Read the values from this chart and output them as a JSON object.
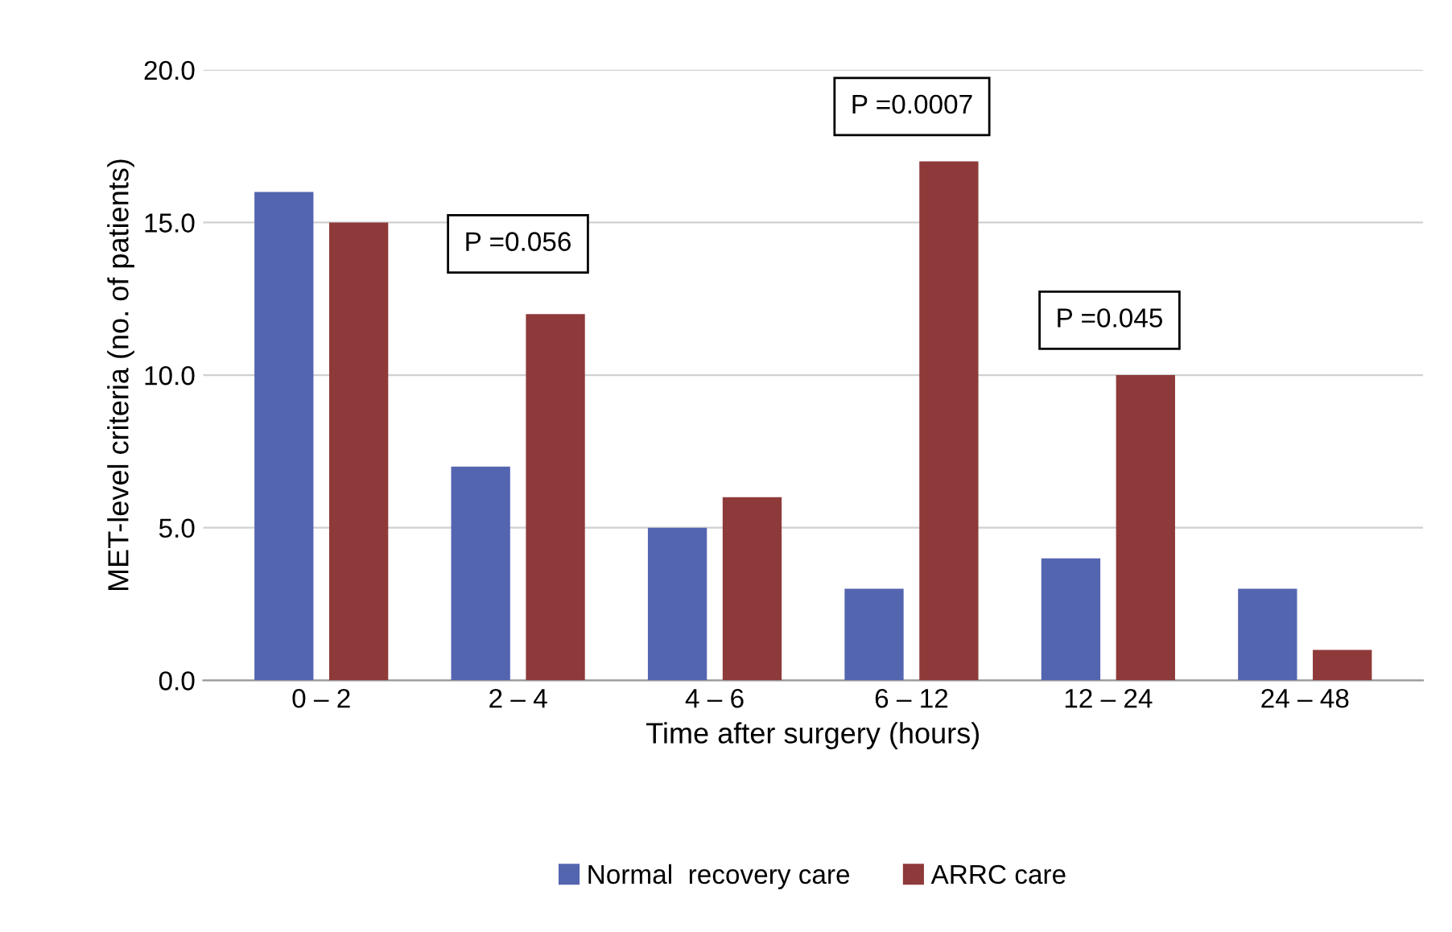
{
  "chart_data": {
    "type": "bar",
    "xlabel": "Time after surgery (hours)",
    "ylabel": "MET-level criteria (no. of patients)",
    "categories": [
      "0 – 2",
      "2 – 4",
      "4 – 6",
      "6 – 12",
      "12 – 24",
      "24 – 48"
    ],
    "series": [
      {
        "name": "Normal  recovery care",
        "color": "#5465b0",
        "values": [
          16,
          7,
          5,
          3,
          4,
          3
        ]
      },
      {
        "name": "ARRC care",
        "color": "#8e3a3a",
        "values": [
          15,
          12,
          6,
          17,
          10,
          1
        ]
      }
    ],
    "ylim": [
      0,
      20
    ],
    "yticks": [
      {
        "value": 0,
        "label": "0.0"
      },
      {
        "value": 5,
        "label": "5.0"
      },
      {
        "value": 10,
        "label": "10.0"
      },
      {
        "value": 15,
        "label": "15.0"
      },
      {
        "value": 20,
        "label": "20.0"
      }
    ],
    "grid": "y",
    "legend": "bottom",
    "annotations": [
      "P =0.056",
      "P =0.0007",
      "P =0.045"
    ]
  }
}
